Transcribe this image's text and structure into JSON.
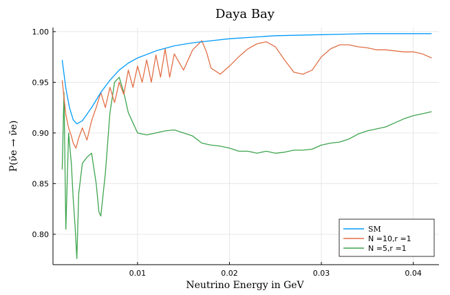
{
  "chart_data": {
    "type": "line",
    "title": "Daya Bay",
    "xlabel": "Neutrino Energy in GeV",
    "ylabel": "P(ν̄e → ν̄e)",
    "xlim": [
      0.0008,
      0.0428
    ],
    "ylim": [
      0.77,
      1.004
    ],
    "x_ticks": [
      0.01,
      0.02,
      0.03,
      0.04
    ],
    "x_tick_labels": [
      "0.01",
      "0.02",
      "0.03",
      "0.04"
    ],
    "y_ticks": [
      0.8,
      0.85,
      0.9,
      0.95,
      1.0
    ],
    "y_tick_labels": [
      "0.80",
      "0.85",
      "0.90",
      "0.95",
      "1.00"
    ],
    "grid": true,
    "legend_position": "bottom-right",
    "series": [
      {
        "name": "SM",
        "color": "#009AFA",
        "x": [
          0.0018,
          0.0022,
          0.0026,
          0.003,
          0.0034,
          0.004,
          0.005,
          0.006,
          0.007,
          0.008,
          0.009,
          0.01,
          0.012,
          0.014,
          0.016,
          0.018,
          0.02,
          0.025,
          0.03,
          0.035,
          0.042
        ],
        "y": [
          0.972,
          0.944,
          0.925,
          0.913,
          0.909,
          0.912,
          0.925,
          0.94,
          0.952,
          0.962,
          0.969,
          0.974,
          0.981,
          0.986,
          0.989,
          0.991,
          0.993,
          0.996,
          0.997,
          0.998,
          0.998
        ]
      },
      {
        "name": "N =10,r =1",
        "color": "#E26F46",
        "x": [
          0.0018,
          0.002,
          0.0022,
          0.0025,
          0.0028,
          0.003,
          0.0033,
          0.0036,
          0.004,
          0.0045,
          0.005,
          0.0055,
          0.006,
          0.0065,
          0.007,
          0.0075,
          0.008,
          0.0085,
          0.009,
          0.0095,
          0.01,
          0.0105,
          0.011,
          0.0115,
          0.012,
          0.0125,
          0.013,
          0.0135,
          0.014,
          0.015,
          0.016,
          0.017,
          0.0175,
          0.018,
          0.019,
          0.02,
          0.021,
          0.022,
          0.023,
          0.024,
          0.025,
          0.026,
          0.027,
          0.028,
          0.029,
          0.03,
          0.031,
          0.032,
          0.033,
          0.034,
          0.035,
          0.036,
          0.037,
          0.038,
          0.039,
          0.04,
          0.041,
          0.042
        ],
        "y": [
          0.952,
          0.935,
          0.918,
          0.905,
          0.897,
          0.89,
          0.885,
          0.895,
          0.905,
          0.893,
          0.912,
          0.925,
          0.94,
          0.925,
          0.945,
          0.93,
          0.95,
          0.938,
          0.962,
          0.945,
          0.966,
          0.95,
          0.972,
          0.95,
          0.977,
          0.955,
          0.983,
          0.955,
          0.978,
          0.962,
          0.982,
          0.991,
          0.98,
          0.964,
          0.958,
          0.966,
          0.975,
          0.983,
          0.988,
          0.99,
          0.985,
          0.972,
          0.96,
          0.958,
          0.962,
          0.975,
          0.983,
          0.987,
          0.987,
          0.985,
          0.984,
          0.982,
          0.982,
          0.981,
          0.98,
          0.98,
          0.978,
          0.974
        ]
      },
      {
        "name": "N =5,r =1",
        "color": "#3DA44D",
        "x": [
          0.0018,
          0.002,
          0.0022,
          0.0025,
          0.0028,
          0.003,
          0.0032,
          0.0034,
          0.0036,
          0.004,
          0.0045,
          0.005,
          0.0055,
          0.0058,
          0.006,
          0.0065,
          0.007,
          0.0075,
          0.008,
          0.0085,
          0.009,
          0.0095,
          0.01,
          0.011,
          0.012,
          0.013,
          0.014,
          0.015,
          0.016,
          0.017,
          0.018,
          0.019,
          0.02,
          0.021,
          0.022,
          0.023,
          0.024,
          0.025,
          0.026,
          0.027,
          0.028,
          0.029,
          0.03,
          0.031,
          0.032,
          0.033,
          0.034,
          0.035,
          0.036,
          0.037,
          0.038,
          0.039,
          0.04,
          0.041,
          0.042
        ],
        "y": [
          0.864,
          0.94,
          0.805,
          0.9,
          0.87,
          0.835,
          0.808,
          0.776,
          0.84,
          0.87,
          0.876,
          0.88,
          0.85,
          0.822,
          0.818,
          0.86,
          0.92,
          0.95,
          0.955,
          0.94,
          0.92,
          0.91,
          0.9,
          0.898,
          0.9,
          0.902,
          0.903,
          0.9,
          0.897,
          0.89,
          0.888,
          0.887,
          0.885,
          0.882,
          0.882,
          0.88,
          0.882,
          0.88,
          0.881,
          0.883,
          0.883,
          0.884,
          0.888,
          0.89,
          0.891,
          0.894,
          0.899,
          0.902,
          0.904,
          0.906,
          0.91,
          0.914,
          0.917,
          0.919,
          0.921
        ]
      }
    ]
  }
}
